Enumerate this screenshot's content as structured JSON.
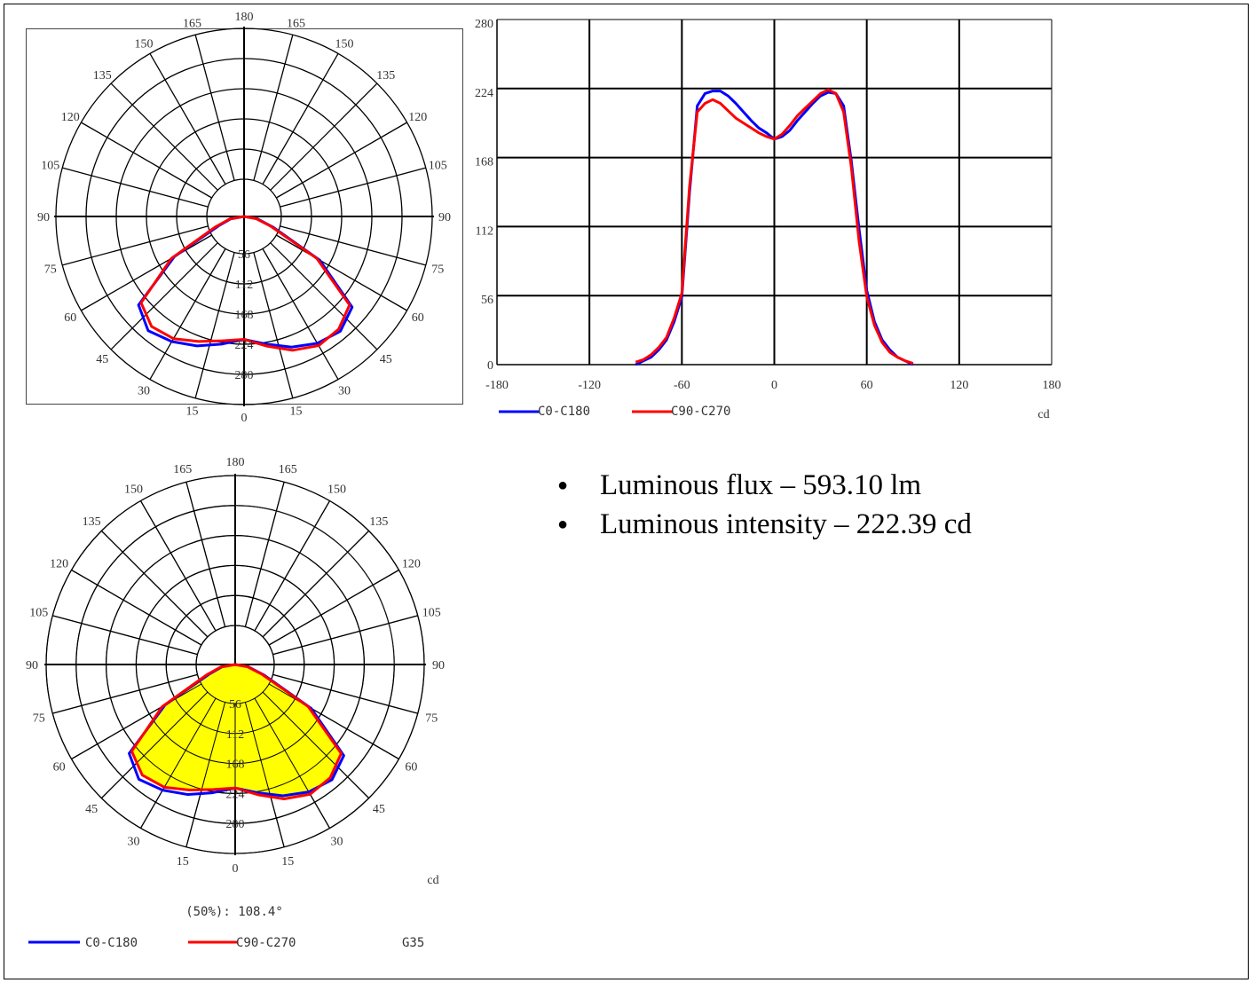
{
  "colors": {
    "c0": "#0000ff",
    "c90": "#ff0000",
    "fill": "#ffff00"
  },
  "bullets": [
    "Luminous flux – 593.10 lm",
    "Luminous intensity – 222.39 cd"
  ],
  "chart_data": [
    {
      "type": "polar",
      "rlim": [
        0,
        280
      ],
      "radial_ticks": [
        "56",
        "112",
        "168",
        "224",
        "280"
      ],
      "angle_ticks": [
        "180",
        "165",
        "165",
        "150",
        "150",
        "135",
        "135",
        "120",
        "120",
        "105",
        "105",
        "90",
        "90",
        "75",
        "75",
        "60",
        "60",
        "45",
        "45",
        "30",
        "30",
        "15",
        "15",
        "0"
      ],
      "series": [
        {
          "name": "C0-C180",
          "angles": [
            -90,
            -80,
            -70,
            -60,
            -50,
            -40,
            -30,
            -20,
            -10,
            0,
            10,
            20,
            30,
            40,
            50,
            60,
            70,
            80,
            90
          ],
          "values": [
            0,
            20,
            40,
            120,
            205,
            222,
            215,
            205,
            193,
            183,
            193,
            207,
            218,
            223,
            210,
            130,
            45,
            20,
            0
          ]
        },
        {
          "name": "C90-C270",
          "angles": [
            -90,
            -80,
            -70,
            -60,
            -50,
            -40,
            -30,
            -20,
            -10,
            0,
            10,
            20,
            30,
            40,
            50,
            60,
            70,
            80,
            90
          ],
          "values": [
            0,
            22,
            45,
            125,
            200,
            214,
            210,
            198,
            188,
            183,
            196,
            212,
            222,
            219,
            205,
            125,
            42,
            18,
            0
          ]
        }
      ]
    },
    {
      "type": "line",
      "xlim": [
        -180,
        180
      ],
      "ylim": [
        0,
        280
      ],
      "x_ticks": [
        "-180",
        "-120",
        "-60",
        "0",
        "60",
        "120",
        "180"
      ],
      "y_ticks": [
        "0",
        "56",
        "112",
        "168",
        "224",
        "280"
      ],
      "grid": true,
      "legend": [
        "C0-C180",
        "C90-C270"
      ],
      "unit": "cd",
      "series": [
        {
          "name": "C0-C180",
          "x": [
            -90,
            -85,
            -80,
            -75,
            -70,
            -65,
            -60,
            -55,
            -50,
            -45,
            -40,
            -35,
            -30,
            -25,
            -20,
            -15,
            -10,
            -5,
            0,
            5,
            10,
            15,
            20,
            25,
            30,
            35,
            40,
            45,
            50,
            55,
            60,
            65,
            70,
            75,
            80,
            85,
            90
          ],
          "y": [
            0,
            3,
            6,
            12,
            20,
            35,
            55,
            140,
            210,
            220,
            222,
            222,
            218,
            212,
            205,
            198,
            192,
            188,
            183,
            185,
            190,
            198,
            205,
            212,
            218,
            221,
            220,
            210,
            165,
            110,
            60,
            35,
            20,
            12,
            6,
            3,
            0
          ]
        },
        {
          "name": "C90-C270",
          "x": [
            -90,
            -85,
            -80,
            -75,
            -70,
            -65,
            -60,
            -55,
            -50,
            -45,
            -40,
            -35,
            -30,
            -25,
            -20,
            -15,
            -10,
            -5,
            0,
            5,
            10,
            15,
            20,
            25,
            30,
            35,
            40,
            45,
            50,
            55,
            60,
            65,
            70,
            75,
            80,
            85,
            90
          ],
          "y": [
            2,
            4,
            8,
            14,
            22,
            38,
            58,
            145,
            205,
            212,
            215,
            212,
            206,
            200,
            196,
            192,
            188,
            185,
            183,
            187,
            194,
            202,
            208,
            214,
            220,
            223,
            220,
            205,
            160,
            100,
            55,
            32,
            18,
            10,
            6,
            3,
            1
          ]
        }
      ]
    },
    {
      "type": "polar",
      "rlim": [
        0,
        280
      ],
      "radial_ticks": [
        "56",
        "112",
        "168",
        "224",
        "280"
      ],
      "angle_ticks": [
        "180",
        "165",
        "165",
        "150",
        "150",
        "135",
        "135",
        "120",
        "120",
        "105",
        "105",
        "90",
        "90",
        "75",
        "75",
        "60",
        "60",
        "45",
        "45",
        "30",
        "30",
        "15",
        "15",
        "0"
      ],
      "unit": "cd",
      "beam_angle_label": "(50%): 108.4°",
      "legend": [
        "C0-C180",
        "C90-C270",
        "G35"
      ],
      "series": [
        {
          "name": "C0-C180",
          "angles": [
            -90,
            -80,
            -70,
            -60,
            -50,
            -40,
            -30,
            -20,
            -10,
            0,
            10,
            20,
            30,
            40,
            50,
            60,
            70,
            80,
            90
          ],
          "values": [
            0,
            20,
            40,
            120,
            205,
            222,
            215,
            205,
            193,
            183,
            193,
            207,
            218,
            223,
            210,
            130,
            45,
            20,
            0
          ]
        },
        {
          "name": "C90-C270",
          "angles": [
            -90,
            -80,
            -70,
            -60,
            -50,
            -40,
            -30,
            -20,
            -10,
            0,
            10,
            20,
            30,
            40,
            50,
            60,
            70,
            80,
            90
          ],
          "values": [
            0,
            22,
            45,
            125,
            200,
            214,
            210,
            198,
            188,
            183,
            196,
            212,
            222,
            219,
            205,
            125,
            42,
            18,
            0
          ]
        }
      ]
    }
  ]
}
